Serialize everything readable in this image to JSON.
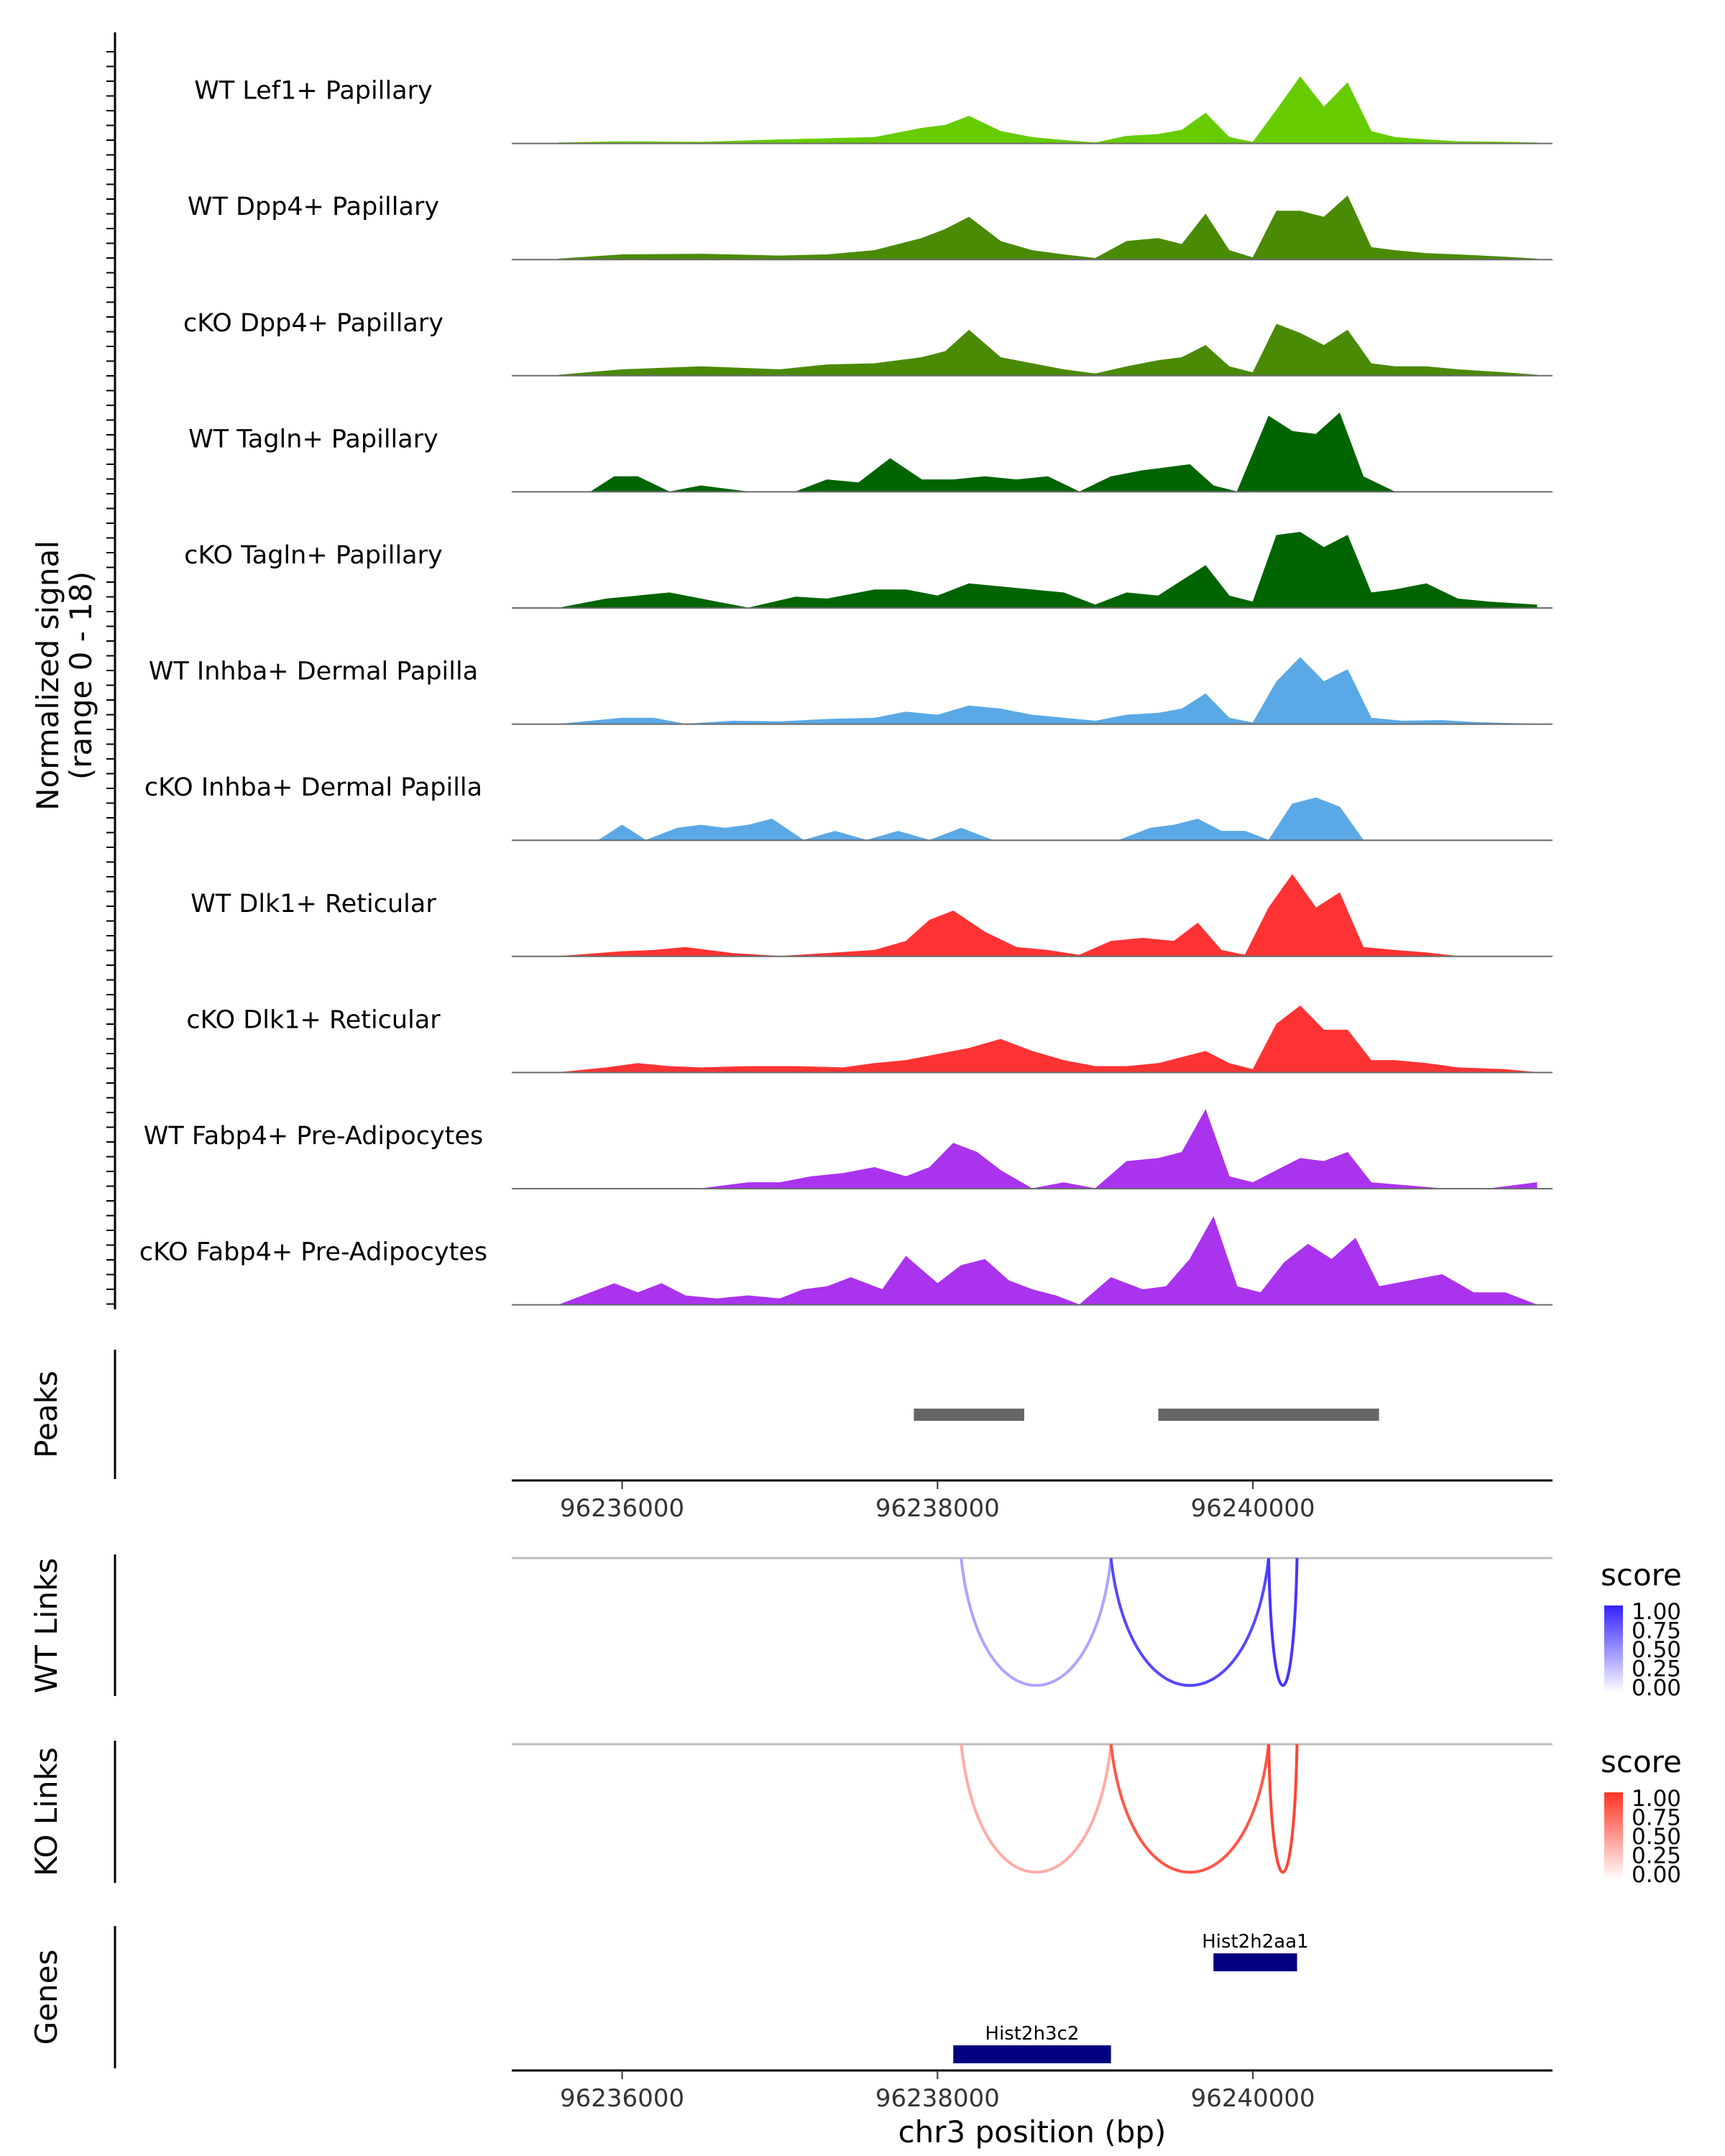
{
  "chart_data": {
    "type": "area",
    "title": "",
    "region": "chr3",
    "xlabel": "chr3 position (bp)",
    "xlim": [
      96235300,
      96241900
    ],
    "x_ticks": [
      96236000,
      96238000,
      96240000
    ],
    "coverage": {
      "ylabel_line1": "Normalized signal",
      "ylabel_line2": "(range 0 - 18)",
      "ylim": [
        0,
        18
      ],
      "tracks": [
        {
          "name": "WT Lef1+ Papillary",
          "color": "#66cc00",
          "x": [
            96235600,
            96236000,
            96236500,
            96237000,
            96237300,
            96237600,
            96237900,
            96238050,
            96238200,
            96238400,
            96238600,
            96238800,
            96239000,
            96239200,
            96239400,
            96239550,
            96239700,
            96239850,
            96240000,
            96240150,
            96240300,
            96240450,
            96240600,
            96240750,
            96240900,
            96241100,
            96241300,
            96241600,
            96241800
          ],
          "y": [
            0.1,
            0.3,
            0.2,
            0.6,
            0.8,
            1.0,
            2.5,
            3.0,
            4.5,
            2.0,
            1.0,
            0.5,
            0.1,
            1.2,
            1.5,
            2.2,
            5.0,
            1.0,
            0.2,
            5.5,
            11.0,
            6.0,
            10.0,
            2.0,
            1.0,
            0.6,
            0.3,
            0.2,
            0.1
          ]
        },
        {
          "name": "WT Dpp4+ Papillary",
          "color": "#4a8a05",
          "x": [
            96235600,
            96236000,
            96236500,
            96237000,
            96237300,
            96237600,
            96237900,
            96238050,
            96238200,
            96238400,
            96238600,
            96238800,
            96239000,
            96239200,
            96239400,
            96239550,
            96239700,
            96239850,
            96240000,
            96240150,
            96240300,
            96240450,
            96240600,
            96240750,
            96240900,
            96241100,
            96241300,
            96241600,
            96241800
          ],
          "y": [
            0.1,
            0.8,
            0.9,
            0.6,
            0.8,
            1.5,
            3.5,
            5.0,
            7.0,
            3.0,
            1.5,
            0.8,
            0.2,
            3.0,
            3.5,
            2.5,
            7.5,
            1.5,
            0.3,
            8.0,
            8.0,
            7.0,
            10.5,
            2.0,
            1.5,
            1.0,
            0.8,
            0.4,
            0.1
          ]
        },
        {
          "name": "cKO Dpp4+ Papillary",
          "color": "#4a8a05",
          "x": [
            96235600,
            96236000,
            96236500,
            96237000,
            96237300,
            96237600,
            96237900,
            96238050,
            96238200,
            96238400,
            96238600,
            96238800,
            96239000,
            96239200,
            96239400,
            96239550,
            96239700,
            96239850,
            96240000,
            96240150,
            96240300,
            96240450,
            96240600,
            96240750,
            96240900,
            96241100,
            96241300,
            96241600,
            96241800
          ],
          "y": [
            0.1,
            1.0,
            1.5,
            1.0,
            1.8,
            2.0,
            3.0,
            4.0,
            7.5,
            3.0,
            2.0,
            1.0,
            0.3,
            1.5,
            2.5,
            3.0,
            5.0,
            1.5,
            0.5,
            8.5,
            7.0,
            5.0,
            7.5,
            2.0,
            1.5,
            1.5,
            1.0,
            0.5,
            0.1
          ]
        },
        {
          "name": "WT Tagln+ Papillary",
          "color": "#006400",
          "x": [
            96235600,
            96235800,
            96235950,
            96236100,
            96236300,
            96236500,
            96236800,
            96237100,
            96237300,
            96237500,
            96237700,
            96237900,
            96238100,
            96238300,
            96238500,
            96238700,
            96238900,
            96239100,
            96239300,
            96239450,
            96239600,
            96239750,
            96239900,
            96240100,
            96240250,
            96240400,
            96240550,
            96240700,
            96240900
          ],
          "y": [
            0,
            0,
            2.5,
            2.5,
            0,
            1.0,
            0,
            0,
            2.0,
            1.5,
            5.5,
            2.0,
            2.0,
            2.5,
            2.0,
            2.5,
            0,
            2.5,
            3.5,
            4.0,
            4.5,
            1.0,
            0,
            12.5,
            10.0,
            9.5,
            13.0,
            2.5,
            0
          ]
        },
        {
          "name": "cKO Tagln+ Papillary",
          "color": "#006400",
          "x": [
            96235600,
            96235900,
            96236100,
            96236300,
            96236500,
            96236800,
            96237100,
            96237300,
            96237600,
            96237800,
            96238000,
            96238200,
            96238400,
            96238600,
            96238800,
            96239000,
            96239200,
            96239400,
            96239550,
            96239700,
            96239850,
            96240000,
            96240150,
            96240300,
            96240450,
            96240600,
            96240750,
            96240900,
            96241100,
            96241300,
            96241500,
            96241800
          ],
          "y": [
            0,
            1.5,
            2.0,
            2.5,
            1.5,
            0,
            1.8,
            1.5,
            3.0,
            3.0,
            2.0,
            4.0,
            3.5,
            3.0,
            2.5,
            0.5,
            2.5,
            2.0,
            4.5,
            7.0,
            2.0,
            1.0,
            12.0,
            12.5,
            10.0,
            12.0,
            2.5,
            3.0,
            4.0,
            1.5,
            1.0,
            0.5
          ]
        },
        {
          "name": "WT Inhba+ Dermal Papilla",
          "color": "#5aa9e6",
          "x": [
            96235600,
            96236000,
            96236200,
            96236400,
            96236700,
            96237000,
            96237300,
            96237600,
            96237800,
            96238000,
            96238200,
            96238400,
            96238600,
            96238800,
            96239000,
            96239200,
            96239400,
            96239550,
            96239700,
            96239850,
            96240000,
            96240150,
            96240300,
            96240450,
            96240600,
            96240750,
            96240950,
            96241200,
            96241400,
            96241800
          ],
          "y": [
            0,
            1.0,
            1.0,
            0,
            0.5,
            0.4,
            0.8,
            1.0,
            2.0,
            1.5,
            3.0,
            2.5,
            1.5,
            1.0,
            0.5,
            1.5,
            1.8,
            2.5,
            5.0,
            1.0,
            0.2,
            7.0,
            11.0,
            7.0,
            9.0,
            1.0,
            0.5,
            0.6,
            0.3,
            0
          ]
        },
        {
          "name": "cKO Inhba+ Dermal Papilla",
          "color": "#5aa9e6",
          "x": [
            96235600,
            96235850,
            96236000,
            96236150,
            96236350,
            96236500,
            96236650,
            96236800,
            96236950,
            96237150,
            96237350,
            96237550,
            96237750,
            96237950,
            96238150,
            96238350,
            96238550,
            96238750,
            96238950,
            96239150,
            96239350,
            96239500,
            96239650,
            96239800,
            96239950,
            96240100,
            96240250,
            96240400,
            96240550,
            96240700
          ],
          "y": [
            0,
            0,
            2.5,
            0,
            2.0,
            2.5,
            2.0,
            2.5,
            3.5,
            0,
            1.5,
            0,
            1.5,
            0,
            2.0,
            0,
            0,
            0,
            0,
            0,
            2.0,
            2.5,
            3.5,
            1.5,
            1.5,
            0,
            6.0,
            7.0,
            5.5,
            0
          ]
        },
        {
          "name": "WT Dlk1+ Reticular",
          "color": "#ff3333",
          "x": [
            96235600,
            96236000,
            96236200,
            96236400,
            96236700,
            96237000,
            96237300,
            96237600,
            96237800,
            96237950,
            96238100,
            96238300,
            96238500,
            96238700,
            96238900,
            96239100,
            96239300,
            96239500,
            96239650,
            96239800,
            96239950,
            96240100,
            96240250,
            96240400,
            96240550,
            96240700,
            96240900,
            96241100,
            96241300
          ],
          "y": [
            0,
            0.8,
            1.0,
            1.5,
            0.5,
            0,
            0.5,
            1.0,
            2.5,
            6.0,
            7.5,
            4.0,
            1.5,
            1.0,
            0.2,
            2.5,
            3.0,
            2.5,
            5.5,
            1.0,
            0.2,
            8.0,
            13.5,
            8.0,
            10.5,
            1.5,
            1.0,
            0.6,
            0
          ]
        },
        {
          "name": "cKO Dlk1+ Reticular",
          "color": "#ff3333",
          "x": [
            96235600,
            96235900,
            96236100,
            96236300,
            96236500,
            96236800,
            96237100,
            96237400,
            96237600,
            96237800,
            96238000,
            96238200,
            96238400,
            96238600,
            96238800,
            96239000,
            96239200,
            96239400,
            96239550,
            96239700,
            96239850,
            96240000,
            96240150,
            96240300,
            96240450,
            96240600,
            96240750,
            96240900,
            96241100,
            96241300,
            96241600,
            96241800
          ],
          "y": [
            0,
            0.8,
            1.5,
            1.0,
            0.8,
            1.0,
            1.0,
            0.8,
            1.5,
            2.0,
            3.0,
            4.0,
            5.5,
            3.5,
            2.0,
            1.0,
            1.0,
            1.5,
            2.5,
            3.5,
            1.5,
            0.5,
            8.0,
            11.0,
            7.0,
            7.0,
            2.0,
            2.0,
            1.5,
            0.8,
            0.5,
            0
          ]
        },
        {
          "name": "WT Fabp4+ Pre-Adipocytes",
          "color": "#aa33ee",
          "x": [
            96235600,
            96236500,
            96236800,
            96237000,
            96237200,
            96237400,
            96237600,
            96237800,
            96237950,
            96238100,
            96238250,
            96238400,
            96238600,
            96238800,
            96239000,
            96239200,
            96239400,
            96239550,
            96239700,
            96239850,
            96240000,
            96240150,
            96240300,
            96240450,
            96240600,
            96240750,
            96241200,
            96241500,
            96241800
          ],
          "y": [
            0,
            0,
            1.0,
            1.0,
            2.0,
            2.5,
            3.5,
            2.0,
            3.5,
            7.5,
            6.0,
            3.0,
            0,
            1.0,
            0,
            4.5,
            5.0,
            6.0,
            13.0,
            2.0,
            1.0,
            3.0,
            5.0,
            4.5,
            6.0,
            1.0,
            0,
            0,
            1.0
          ]
        },
        {
          "name": "cKO Fabp4+ Pre-Adipocytes",
          "color": "#aa33ee",
          "x": [
            96235600,
            96235950,
            96236100,
            96236250,
            96236400,
            96236600,
            96236800,
            96237000,
            96237150,
            96237300,
            96237450,
            96237650,
            96237800,
            96238000,
            96238150,
            96238300,
            96238450,
            96238600,
            96238750,
            96238900,
            96239100,
            96239300,
            96239450,
            96239600,
            96239750,
            96239900,
            96240050,
            96240200,
            96240350,
            96240500,
            96240650,
            96240800,
            96241000,
            96241200,
            96241400,
            96241600,
            96241800
          ],
          "y": [
            0,
            3.5,
            2.0,
            3.5,
            1.5,
            1.0,
            1.5,
            1.0,
            2.5,
            3.0,
            4.5,
            2.5,
            8.0,
            3.5,
            6.5,
            7.5,
            4.0,
            2.5,
            1.5,
            0,
            4.5,
            2.5,
            3.0,
            7.5,
            14.5,
            3.0,
            2.0,
            7.0,
            10.0,
            7.5,
            11.0,
            3.0,
            4.0,
            5.0,
            2.0,
            2.0,
            0
          ]
        }
      ]
    },
    "peaks": {
      "label": "Peaks",
      "regions": [
        [
          96237850,
          96238550
        ],
        [
          96239400,
          96240800
        ]
      ]
    },
    "links": [
      {
        "label": "WT Links",
        "legend_title": "score",
        "legend_ticks": [
          "1.00",
          "0.75",
          "0.50",
          "0.25",
          "0.00"
        ],
        "color_high": "#3322ff",
        "arcs": [
          {
            "start": 96238150,
            "end": 96239100,
            "score": 0.3
          },
          {
            "start": 96239100,
            "end": 96240100,
            "score": 0.8
          },
          {
            "start": 96240100,
            "end": 96240280,
            "score": 0.9
          }
        ]
      },
      {
        "label": "KO Links",
        "legend_title": "score",
        "legend_ticks": [
          "1.00",
          "0.75",
          "0.50",
          "0.25",
          "0.00"
        ],
        "color_high": "#ff3322",
        "arcs": [
          {
            "start": 96238150,
            "end": 96239100,
            "score": 0.3
          },
          {
            "start": 96239100,
            "end": 96240100,
            "score": 0.8
          },
          {
            "start": 96240100,
            "end": 96240280,
            "score": 0.9
          }
        ]
      }
    ],
    "genes": {
      "label": "Genes",
      "items": [
        {
          "name": "Hist2h2aa1",
          "start": 96239750,
          "end": 96240280
        },
        {
          "name": "Hist2h3c2",
          "start": 96238100,
          "end": 96239100
        }
      ]
    }
  }
}
